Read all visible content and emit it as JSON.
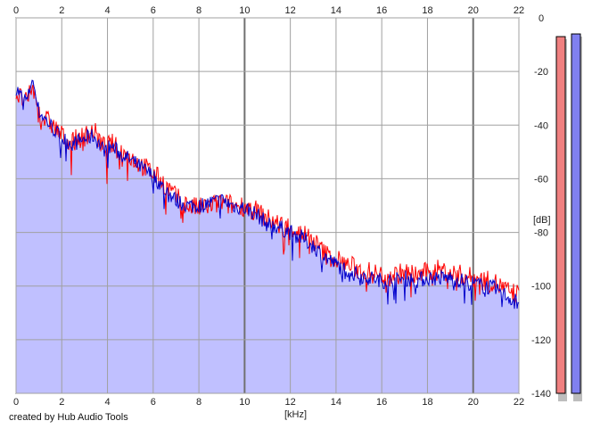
{
  "credit": "created by Hub Audio Tools",
  "chart_data": {
    "type": "area",
    "xlabel": "[kHz]",
    "ylabel": "[dB]",
    "xlim": [
      0,
      22
    ],
    "ylim": [
      -140,
      0
    ],
    "x_ticks": [
      0,
      2,
      4,
      6,
      8,
      10,
      12,
      14,
      16,
      18,
      20,
      22
    ],
    "y_ticks": [
      0,
      -20,
      -40,
      -60,
      -80,
      -100,
      -120,
      -140
    ],
    "grid": true,
    "colors": {
      "fill": "#c0c0ff",
      "left_channel": "#ff0000",
      "right_channel": "#0000cc",
      "grid": "#a0a0a0",
      "major_grid": "#707070",
      "meter_left": "#f08080",
      "meter_right": "#8080f0"
    },
    "series": [
      {
        "color": "#ff0000",
        "x": [
          0,
          0.2,
          0.5,
          0.7,
          1.0,
          1.3,
          1.6,
          2.0,
          2.5,
          3.0,
          3.4,
          3.8,
          4.2,
          4.6,
          5.0,
          5.5,
          6.0,
          6.5,
          7.0,
          7.5,
          8.0,
          8.5,
          9.0,
          9.5,
          10.0,
          10.5,
          11.0,
          11.5,
          12.0,
          12.5,
          13.0,
          13.5,
          14.0,
          14.5,
          15.0,
          15.5,
          16.0,
          16.5,
          17.0,
          17.5,
          18.0,
          18.5,
          19.0,
          19.5,
          20.0,
          20.5,
          21.0,
          21.5,
          22.0
        ],
        "y": [
          -28,
          -30,
          -32,
          -25,
          -36,
          -38,
          -40,
          -44,
          -46,
          -44,
          -42,
          -48,
          -47,
          -50,
          -52,
          -55,
          -58,
          -62,
          -67,
          -70,
          -71,
          -70,
          -69,
          -70,
          -70,
          -72,
          -75,
          -77,
          -78,
          -80,
          -83,
          -88,
          -90,
          -92,
          -94,
          -95,
          -96,
          -96,
          -95,
          -96,
          -95,
          -94,
          -95,
          -96,
          -97,
          -98,
          -99,
          -102,
          -103
        ]
      },
      {
        "color": "#0000cc",
        "x": [
          0,
          0.2,
          0.5,
          0.7,
          1.0,
          1.3,
          1.6,
          2.0,
          2.5,
          3.0,
          3.4,
          3.8,
          4.2,
          4.6,
          5.0,
          5.5,
          6.0,
          6.5,
          7.0,
          7.5,
          8.0,
          8.5,
          9.0,
          9.5,
          10.0,
          10.5,
          11.0,
          11.5,
          12.0,
          12.5,
          13.0,
          13.5,
          14.0,
          14.5,
          15.0,
          15.5,
          16.0,
          16.5,
          17.0,
          17.5,
          18.0,
          18.5,
          19.0,
          19.5,
          20.0,
          20.5,
          21.0,
          21.5,
          22.0
        ],
        "y": [
          -26,
          -29,
          -31,
          -22,
          -35,
          -38,
          -41,
          -45,
          -47,
          -45,
          -44,
          -49,
          -48,
          -51,
          -53,
          -56,
          -59,
          -64,
          -68,
          -70,
          -70,
          -69,
          -68,
          -70,
          -71,
          -73,
          -77,
          -78,
          -80,
          -82,
          -85,
          -89,
          -92,
          -94,
          -96,
          -97,
          -98,
          -98,
          -97,
          -98,
          -97,
          -97,
          -97,
          -98,
          -99,
          -100,
          -101,
          -104,
          -106
        ]
      }
    ],
    "level_meters": [
      {
        "color": "#f08080",
        "level_db": -7
      },
      {
        "color": "#8080f0",
        "level_db": -6
      }
    ]
  }
}
